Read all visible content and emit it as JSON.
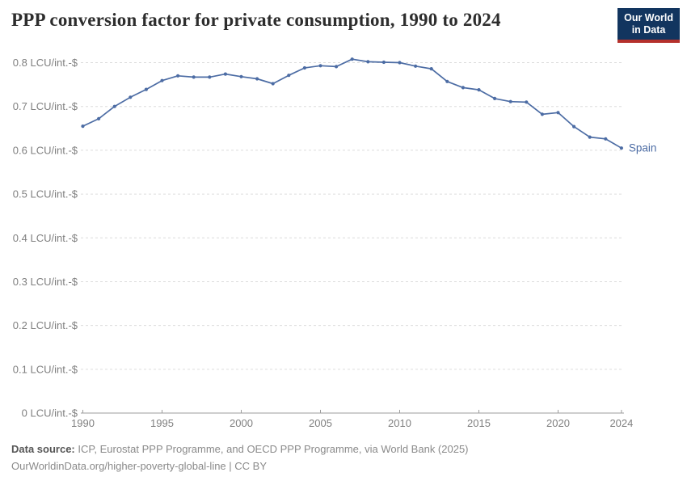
{
  "header": {
    "logo": {
      "line1": "Our World",
      "line2": "in Data"
    }
  },
  "chart_data": {
    "type": "line",
    "title": "PPP conversion factor for private consumption, 1990 to 2024",
    "xlabel": "",
    "ylabel": "LCU/int.-$",
    "xlim": [
      1990,
      2024
    ],
    "ylim": [
      0,
      0.8
    ],
    "grid": "horizontal-dashed",
    "legend_position": "end-of-line-label",
    "x_ticks": [
      1990,
      1995,
      2000,
      2005,
      2010,
      2015,
      2020,
      2024
    ],
    "y_ticks": [
      0,
      0.1,
      0.2,
      0.3,
      0.4,
      0.5,
      0.6,
      0.7,
      0.8
    ],
    "y_tick_suffix": " LCU/int.-$",
    "series": [
      {
        "name": "Spain",
        "color": "#4C6CA4",
        "x": [
          1990,
          1991,
          1992,
          1993,
          1994,
          1995,
          1996,
          1997,
          1998,
          1999,
          2000,
          2001,
          2002,
          2003,
          2004,
          2005,
          2006,
          2007,
          2008,
          2009,
          2010,
          2011,
          2012,
          2013,
          2014,
          2015,
          2016,
          2017,
          2018,
          2019,
          2020,
          2021,
          2022,
          2023,
          2024
        ],
        "values": [
          0.655,
          0.672,
          0.7,
          0.721,
          0.739,
          0.759,
          0.77,
          0.767,
          0.767,
          0.774,
          0.768,
          0.763,
          0.752,
          0.771,
          0.788,
          0.793,
          0.791,
          0.808,
          0.802,
          0.801,
          0.8,
          0.792,
          0.786,
          0.757,
          0.743,
          0.738,
          0.718,
          0.711,
          0.71,
          0.682,
          0.686,
          0.654,
          0.63,
          0.626,
          0.605
        ]
      }
    ]
  },
  "footer": {
    "source_label": "Data source:",
    "source_text": "ICP, Eurostat PPP Programme, and OECD PPP Programme, via World Bank (2025)",
    "license_line": "OurWorldinData.org/higher-poverty-global-line | CC BY"
  },
  "colors": {
    "line": "#4C6CA4",
    "logo_bg": "#12355F",
    "logo_bar": "#B5312C",
    "gridline": "#DCDCDC",
    "axis": "#9C9C9C",
    "tick_label": "#7F7F7F",
    "title_text": "#2D2D2D",
    "footer_text": "#8A8A8A"
  }
}
